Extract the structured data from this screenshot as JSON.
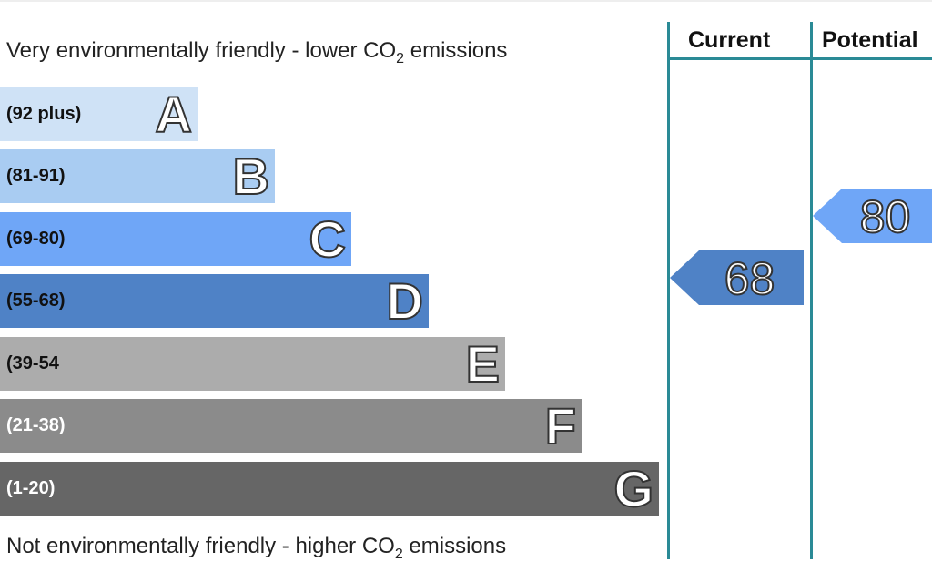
{
  "captions": {
    "top_text": "Very environmentally friendly - lower CO",
    "top_sub": "2",
    "top_tail": " emissions",
    "bottom_text": "Not environmentally friendly - higher CO",
    "bottom_sub": "2",
    "bottom_tail": " emissions"
  },
  "columns": {
    "current": "Current",
    "potential": "Potential"
  },
  "chart_data": {
    "type": "bar",
    "title": "",
    "bands": [
      {
        "letter": "A",
        "range": "(92 plus)",
        "color": "#cfe2f6",
        "text_color": "#111111"
      },
      {
        "letter": "B",
        "range": "(81-91)",
        "color": "#a9ccf2",
        "text_color": "#111111"
      },
      {
        "letter": "C",
        "range": "(69-80)",
        "color": "#6fa6f7",
        "text_color": "#111111"
      },
      {
        "letter": "D",
        "range": "(55-68)",
        "color": "#4f82c6",
        "text_color": "#111111"
      },
      {
        "letter": "E",
        "range": "(39-54",
        "color": "#acacac",
        "text_color": "#111111"
      },
      {
        "letter": "F",
        "range": "(21-38)",
        "color": "#8b8b8b",
        "text_color": "#ffffff"
      },
      {
        "letter": "G",
        "range": "(1-20)",
        "color": "#666666",
        "text_color": "#ffffff"
      }
    ],
    "current": {
      "value": "68",
      "band": "D"
    },
    "potential": {
      "value": "80",
      "band": "C"
    }
  }
}
